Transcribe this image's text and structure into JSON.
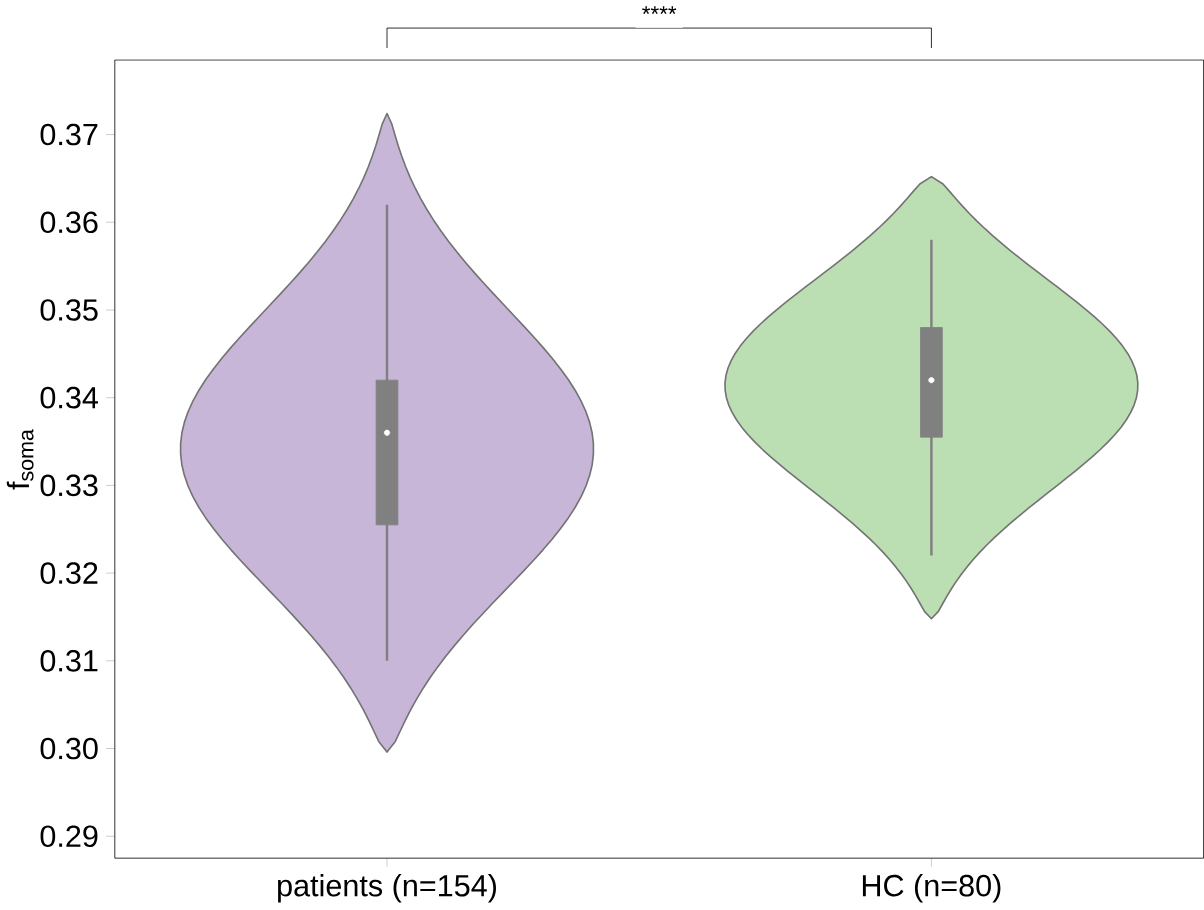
{
  "chart_data": {
    "type": "box",
    "ylabel": "f$_{soma}$",
    "categories": [
      "patients (n=154)",
      "HC (n=80)"
    ],
    "series": [
      {
        "color": "#808080",
        "boxes": [
          {
            "low": 0.31,
            "q1": 0.3255,
            "median": 0.336,
            "q3": 0.342,
            "high": 0.362
          },
          {
            "low": 0.322,
            "q1": 0.3355,
            "median": 0.342,
            "q3": 0.348,
            "high": 0.358
          }
        ]
      }
    ],
    "ylim": [
      0.2875,
      0.3785
    ],
    "yticks": [
      0.29,
      {
        "value": 0.3,
        "label": "0.30"
      },
      0.31,
      0.32,
      0.33,
      0.34,
      0.35,
      0.36,
      0.37
    ],
    "annotations": [
      "****"
    ],
    "grid": false
  }
}
